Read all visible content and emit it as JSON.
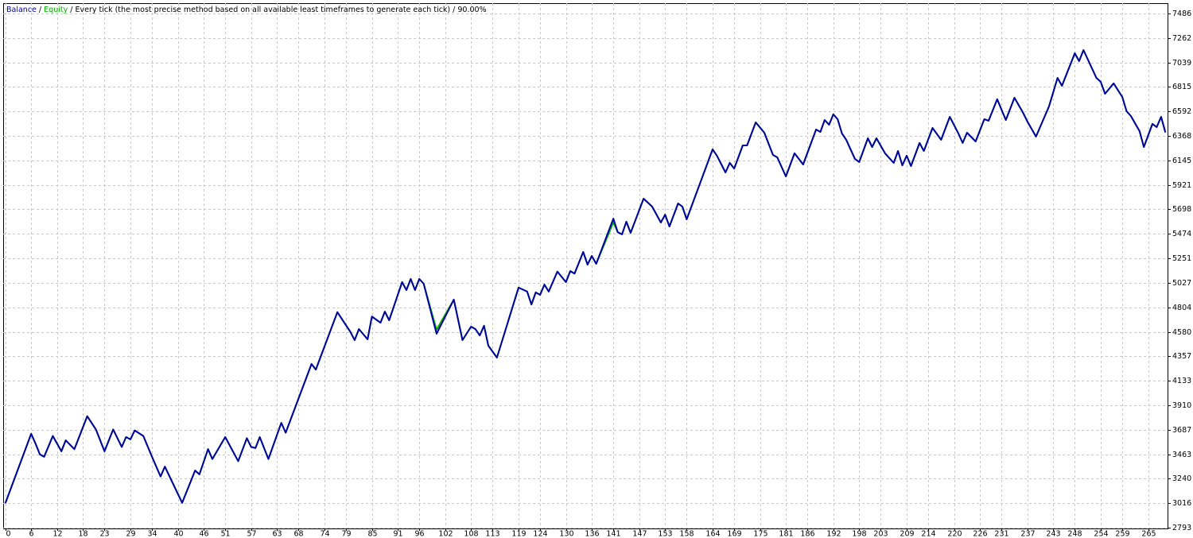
{
  "chart_data": {
    "type": "line",
    "legend_separator": "/",
    "title": "Every tick (the most precise method based on all available least timeframes to generate each tick) / 90.00%",
    "x": [
      0,
      6,
      7,
      8,
      9,
      11,
      13,
      14,
      16,
      19,
      21,
      23,
      25,
      27,
      28,
      29,
      30,
      32,
      34,
      36,
      37,
      41,
      44,
      45,
      47,
      48,
      51,
      54,
      56,
      57,
      58,
      59,
      61,
      64,
      65,
      71,
      72,
      77,
      80,
      81,
      82,
      84,
      85,
      87,
      88,
      89,
      92,
      93,
      94,
      95,
      96,
      97,
      100,
      104,
      106,
      108,
      109,
      110,
      111,
      112,
      114,
      119,
      121,
      122,
      123,
      124,
      125,
      126,
      128,
      130,
      131,
      132,
      134,
      135,
      136,
      137,
      141,
      142,
      143,
      144,
      145,
      148,
      150,
      152,
      153,
      154,
      156,
      157,
      158,
      164,
      165,
      167,
      168,
      169,
      171,
      172,
      174,
      176,
      178,
      179,
      181,
      183,
      185,
      188,
      189,
      190,
      191,
      192,
      193,
      194,
      195,
      197,
      198,
      200,
      201,
      202,
      204,
      206,
      207,
      208,
      209,
      210,
      212,
      213,
      215,
      217,
      219,
      221,
      222,
      223,
      225,
      227,
      228,
      230,
      232,
      234,
      236,
      237,
      239,
      242,
      244,
      245,
      248,
      249,
      250,
      253,
      254,
      255,
      257,
      259,
      260,
      261,
      263,
      264,
      266,
      267,
      268,
      269
    ],
    "series": [
      {
        "name": "Equity",
        "color": "#00b000",
        "values": [
          3016,
          3650,
          3560,
          3463,
          3440,
          3630,
          3490,
          3590,
          3510,
          3810,
          3690,
          3490,
          3690,
          3530,
          3620,
          3600,
          3680,
          3630,
          3440,
          3260,
          3350,
          3020,
          3315,
          3280,
          3510,
          3420,
          3620,
          3400,
          3610,
          3530,
          3520,
          3620,
          3420,
          3750,
          3660,
          4287,
          4236,
          4760,
          4580,
          4505,
          4606,
          4512,
          4720,
          4664,
          4765,
          4686,
          5034,
          4962,
          5063,
          4962,
          5063,
          5020,
          4600,
          4875,
          4505,
          4628,
          4606,
          4548,
          4636,
          4454,
          4345,
          4984,
          4948,
          4830,
          4940,
          4918,
          5012,
          4948,
          5130,
          5034,
          5135,
          5113,
          5310,
          5194,
          5273,
          5201,
          5580,
          5490,
          5470,
          5586,
          5484,
          5796,
          5723,
          5578,
          5650,
          5542,
          5752,
          5723,
          5607,
          6246,
          6188,
          6035,
          6122,
          6071,
          6282,
          6282,
          6492,
          6398,
          6195,
          6173,
          5999,
          6210,
          6108,
          6427,
          6405,
          6514,
          6470,
          6565,
          6521,
          6391,
          6333,
          6159,
          6130,
          6347,
          6267,
          6347,
          6210,
          6122,
          6231,
          6100,
          6188,
          6093,
          6304,
          6231,
          6441,
          6333,
          6543,
          6391,
          6304,
          6398,
          6318,
          6521,
          6507,
          6703,
          6514,
          6717,
          6579,
          6499,
          6362,
          6637,
          6898,
          6826,
          7123,
          7051,
          7152,
          6898,
          6862,
          6753,
          6848,
          6724,
          6594,
          6550,
          6412,
          6267,
          6478,
          6449,
          6543,
          6400
        ]
      },
      {
        "name": "Balance",
        "color": "#0000a0",
        "values": [
          3016,
          3650,
          3560,
          3463,
          3440,
          3630,
          3490,
          3590,
          3510,
          3810,
          3690,
          3490,
          3690,
          3530,
          3620,
          3600,
          3680,
          3630,
          3440,
          3260,
          3350,
          3020,
          3315,
          3280,
          3510,
          3420,
          3620,
          3400,
          3610,
          3530,
          3520,
          3620,
          3420,
          3750,
          3660,
          4287,
          4236,
          4760,
          4580,
          4505,
          4606,
          4512,
          4720,
          4664,
          4765,
          4686,
          5034,
          4962,
          5063,
          4962,
          5063,
          5020,
          4563,
          4875,
          4505,
          4628,
          4606,
          4548,
          4636,
          4454,
          4345,
          4984,
          4948,
          4830,
          4940,
          4918,
          5012,
          4948,
          5130,
          5034,
          5135,
          5113,
          5310,
          5194,
          5273,
          5201,
          5614,
          5490,
          5470,
          5586,
          5484,
          5796,
          5723,
          5578,
          5650,
          5542,
          5752,
          5723,
          5607,
          6246,
          6188,
          6035,
          6122,
          6071,
          6282,
          6282,
          6492,
          6398,
          6195,
          6173,
          5999,
          6210,
          6108,
          6427,
          6405,
          6514,
          6470,
          6565,
          6521,
          6391,
          6333,
          6159,
          6130,
          6347,
          6267,
          6347,
          6210,
          6122,
          6231,
          6100,
          6188,
          6093,
          6304,
          6231,
          6441,
          6333,
          6543,
          6391,
          6304,
          6398,
          6318,
          6521,
          6507,
          6703,
          6514,
          6717,
          6579,
          6499,
          6362,
          6637,
          6898,
          6826,
          7123,
          7051,
          7152,
          6898,
          6862,
          6753,
          6848,
          6724,
          6594,
          6550,
          6412,
          6267,
          6478,
          6449,
          6543,
          6400
        ]
      }
    ],
    "xlim": [
      -0.5,
      269.5
    ],
    "xticks": [
      0,
      6,
      12,
      18,
      23,
      29,
      34,
      40,
      46,
      51,
      57,
      63,
      68,
      74,
      79,
      85,
      91,
      96,
      102,
      108,
      113,
      119,
      124,
      130,
      136,
      141,
      147,
      153,
      158,
      164,
      169,
      175,
      181,
      186,
      192,
      198,
      203,
      209,
      214,
      220,
      226,
      231,
      237,
      243,
      248,
      254,
      259,
      265
    ],
    "ylim": [
      2786,
      7580
    ],
    "yticks": [
      2793,
      3016,
      3240,
      3463,
      3687,
      3910,
      4133,
      4357,
      4580,
      4804,
      5027,
      5251,
      5474,
      5698,
      5921,
      6145,
      6368,
      6592,
      6815,
      7039,
      7262,
      7486
    ],
    "grid": true
  }
}
